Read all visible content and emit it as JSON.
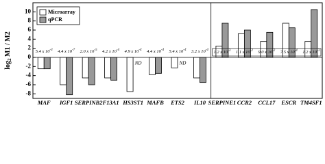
{
  "chart_data": {
    "type": "bar",
    "ylabel": {
      "main": "log",
      "sub": "2",
      "rest": " M1 / M2"
    },
    "categories": [
      "MAF",
      "IGF1",
      "SERPINB2",
      "F13A1",
      "HS3ST1",
      "MAFB",
      "ETS2",
      "IL10",
      "SERPINE1",
      "CCR2",
      "CCL17",
      "ESCR",
      "TM4SF1"
    ],
    "series": [
      {
        "name": "Microarray",
        "color": "#ffffff",
        "values": [
          -2.5,
          -6,
          -4.5,
          -4.5,
          -7.5,
          -3.8,
          -2.3,
          -4.5,
          2.5,
          5.2,
          3.5,
          7.5,
          3.5
        ]
      },
      {
        "name": "qPCR",
        "color": "#999999",
        "values": [
          -2.5,
          -8.2,
          -6,
          -5,
          null,
          -3.5,
          null,
          -5.5,
          7.5,
          6,
          5.5,
          6.5,
          10.5
        ]
      }
    ],
    "annotations": [
      {
        "base": "5.4 x 10",
        "exp": "-3"
      },
      {
        "base": "4.4 x 10",
        "exp": "-7"
      },
      {
        "base": "2.0 x 10",
        "exp": "-5"
      },
      {
        "base": "4.2 x 10",
        "exp": "-4"
      },
      {
        "base": "4.9 x 10",
        "exp": "-4"
      },
      {
        "base": "4.4 x 10",
        "exp": "-4"
      },
      {
        "base": "5.4 x 10",
        "exp": "-4"
      },
      {
        "base": "3.2 x 10",
        "exp": "-4"
      },
      {
        "base": "1.2 x 10",
        "exp": "-3"
      },
      {
        "base": "1.1 x 10",
        "exp": "-2"
      },
      {
        "base": "9.0 x 10",
        "exp": "-2"
      },
      {
        "base": "7.5 x 10",
        "exp": "-4"
      },
      {
        "base": "1.2 x 10",
        "exp": "-3"
      }
    ],
    "missing_label": "ND",
    "ylim": [
      -9,
      12
    ],
    "yticks": [
      -8,
      -6,
      -4,
      -2,
      0,
      2,
      4,
      6,
      8,
      10
    ]
  }
}
